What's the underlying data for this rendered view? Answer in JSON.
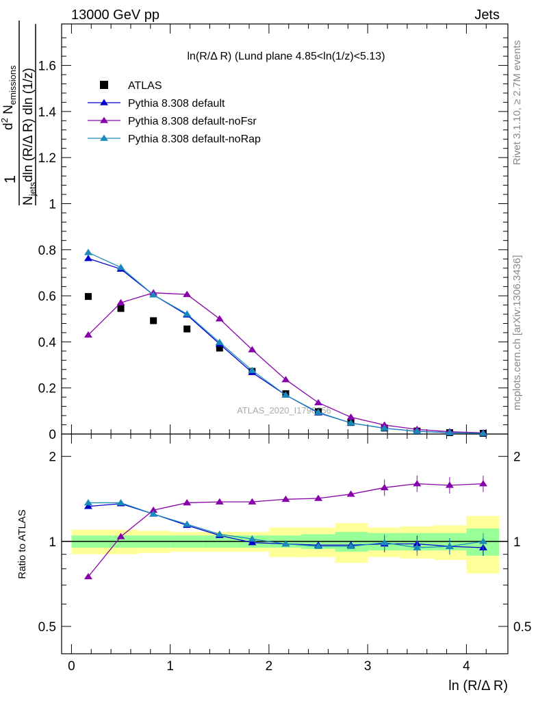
{
  "header": {
    "left": "13000 GeV pp",
    "right": "Jets"
  },
  "side_labels": {
    "rivet": "Rivet 3.1.10, ≥ 2.7M events",
    "mcplots": "mcplots.cern.ch [arXiv:1306.3436]"
  },
  "chart_data": [
    {
      "type": "scatter",
      "title": "ln(R/Δ R) (Lund plane 4.85<ln(1/z)<5.13)",
      "watermark": "ATLAS_2020_I1790256",
      "ylabel": "1/N_jets d² N_emissions / dln (R/Δ R) dln (1/z)",
      "xlim": [
        -0.1,
        4.42
      ],
      "ylim": [
        0,
        1.78
      ],
      "yticks": [
        "0.2",
        "0.4",
        "0.6",
        "0.8",
        "1",
        "1.2",
        "1.4",
        "1.6"
      ],
      "legend_position": "top-left",
      "x": [
        0.17,
        0.5,
        0.83,
        1.17,
        1.5,
        1.83,
        2.17,
        2.5,
        2.83,
        3.17,
        3.5,
        3.83,
        4.17
      ],
      "series": [
        {
          "name": "ATLAS",
          "color": "#000000",
          "marker": "square",
          "values": [
            0.597,
            0.545,
            0.492,
            0.456,
            0.373,
            0.272,
            0.175,
            0.097,
            0.05,
            0.026,
            0.013,
            0.006,
            0.003
          ]
        },
        {
          "name": "Pythia 8.308 default",
          "color": "#0000cc",
          "marker": "triangle",
          "values": [
            0.762,
            0.716,
            0.604,
            0.517,
            0.391,
            0.267,
            0.169,
            0.092,
            0.048,
            0.025,
            0.012,
            0.006,
            0.003
          ]
        },
        {
          "name": "Pythia 8.308 default-noFsr",
          "color": "#8800aa",
          "marker": "triangle",
          "values": [
            0.43,
            0.57,
            0.613,
            0.606,
            0.5,
            0.366,
            0.236,
            0.136,
            0.073,
            0.039,
            0.02,
            0.01,
            0.005
          ]
        },
        {
          "name": "Pythia 8.308 default-noRap",
          "color": "#1a8abb",
          "marker": "triangle",
          "values": [
            0.788,
            0.723,
            0.604,
            0.521,
            0.398,
            0.276,
            0.169,
            0.094,
            0.048,
            0.025,
            0.012,
            0.006,
            0.003
          ]
        }
      ]
    },
    {
      "type": "scatter",
      "xlabel": "ln (R/Δ R)",
      "ylabel": "Ratio to ATLAS",
      "log_y": true,
      "ylim": [
        0.4,
        2.4
      ],
      "xticks": [
        "0",
        "1",
        "2",
        "3",
        "4"
      ],
      "yticks": [
        "0.5",
        "1",
        "2"
      ],
      "x": [
        0.17,
        0.5,
        0.83,
        1.17,
        1.5,
        1.83,
        2.17,
        2.5,
        2.83,
        3.17,
        3.5,
        3.83,
        4.17
      ],
      "bin_edges": [
        0,
        0.33,
        0.67,
        1.0,
        1.33,
        1.67,
        2.0,
        2.33,
        2.67,
        3.0,
        3.33,
        3.67,
        4.0,
        4.33
      ],
      "band_inner": [
        0.05,
        0.05,
        0.05,
        0.05,
        0.05,
        0.05,
        0.05,
        0.06,
        0.08,
        0.07,
        0.07,
        0.07,
        0.11
      ],
      "band_outer": [
        0.1,
        0.1,
        0.09,
        0.08,
        0.08,
        0.08,
        0.12,
        0.12,
        0.16,
        0.12,
        0.13,
        0.14,
        0.23
      ],
      "series": [
        {
          "name": "Pythia 8.308 default",
          "color": "#0000cc",
          "values": [
            1.33,
            1.36,
            1.25,
            1.14,
            1.05,
            0.99,
            0.98,
            0.97,
            0.97,
            0.98,
            0.98,
            0.96,
            0.95
          ]
        },
        {
          "name": "Pythia 8.308 default-noFsr",
          "color": "#8800aa",
          "values": [
            0.75,
            1.04,
            1.29,
            1.37,
            1.38,
            1.38,
            1.41,
            1.42,
            1.47,
            1.55,
            1.6,
            1.58,
            1.6
          ]
        },
        {
          "name": "Pythia 8.308 default-noRap",
          "color": "#1a8abb",
          "values": [
            1.37,
            1.37,
            1.25,
            1.15,
            1.06,
            1.02,
            0.98,
            0.96,
            0.96,
            0.99,
            0.95,
            0.96,
            1.0
          ]
        }
      ]
    }
  ]
}
